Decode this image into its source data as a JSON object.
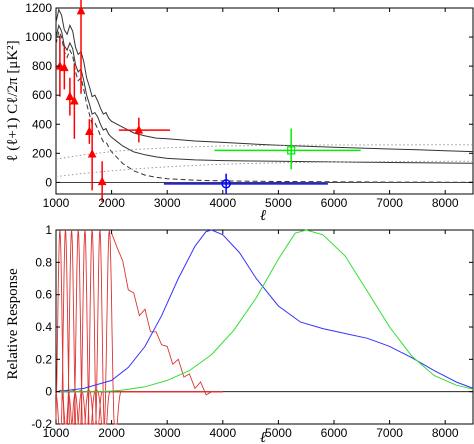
{
  "chart_data": [
    {
      "type": "line",
      "xlabel": "ℓ",
      "ylabel": "ℓ (ℓ+1) Cℓ/2π [μK²]",
      "xlim": [
        1000,
        8500
      ],
      "ylim": [
        -80,
        1200
      ],
      "xticks": [
        "1000",
        "2000",
        "3000",
        "4000",
        "5000",
        "6000",
        "7000",
        "8000"
      ],
      "yticks": [
        "0",
        "200",
        "400",
        "600",
        "800",
        "1000",
        "1200"
      ],
      "series": [
        {
          "style": "solid-black",
          "x": [
            1000,
            1050,
            1100,
            1150,
            1200,
            1250,
            1300,
            1350,
            1400,
            1450,
            1500,
            1550,
            1600,
            1650,
            1700,
            1750,
            1800,
            1850,
            1900,
            1950,
            2000,
            2100,
            2200,
            2400,
            2600,
            2800,
            3000,
            3500,
            4000,
            4500,
            5000,
            5500,
            6000,
            6500,
            7000,
            7500,
            8000,
            8500
          ],
          "y": [
            1100,
            1190,
            1150,
            1050,
            1020,
            1080,
            1040,
            930,
            880,
            900,
            830,
            720,
            660,
            590,
            600,
            560,
            510,
            470,
            480,
            440,
            420,
            400,
            380,
            340,
            320,
            305,
            300,
            285,
            275,
            265,
            255,
            248,
            242,
            236,
            230,
            224,
            218,
            212
          ]
        },
        {
          "style": "solid-black",
          "x": [
            1000,
            1050,
            1100,
            1150,
            1200,
            1250,
            1300,
            1350,
            1400,
            1450,
            1500,
            1550,
            1600,
            1650,
            1700,
            1750,
            1800,
            1850,
            1900,
            1950,
            2000,
            2100,
            2200,
            2400,
            2600,
            2800,
            3000,
            3500,
            4000,
            4500,
            5000,
            5500,
            6000,
            6500,
            7000,
            7500,
            8000,
            8500
          ],
          "y": [
            1000,
            1080,
            1040,
            940,
            910,
            960,
            920,
            810,
            760,
            780,
            700,
            600,
            540,
            470,
            480,
            450,
            400,
            360,
            370,
            330,
            310,
            280,
            250,
            210,
            190,
            175,
            165,
            155,
            150,
            147,
            145,
            143,
            141,
            139,
            137,
            135,
            133,
            131
          ]
        },
        {
          "style": "dashed-black",
          "x": [
            1000,
            1050,
            1100,
            1150,
            1200,
            1250,
            1300,
            1350,
            1400,
            1450,
            1500,
            1550,
            1600,
            1650,
            1700,
            1750,
            1800,
            1850,
            1900,
            1950,
            2000,
            2100,
            2200,
            2400,
            2600,
            2800,
            3000,
            3500,
            4000,
            4500,
            5000,
            5500,
            6000,
            6500,
            7000,
            7500,
            8000,
            8500
          ],
          "y": [
            950,
            1040,
            1000,
            900,
            860,
            910,
            870,
            760,
            700,
            720,
            640,
            540,
            470,
            400,
            410,
            370,
            320,
            280,
            280,
            240,
            210,
            170,
            130,
            80,
            50,
            35,
            25,
            15,
            10,
            8,
            6,
            5,
            4,
            3,
            2,
            2,
            1,
            1
          ]
        },
        {
          "style": "dotted-gray",
          "x": [
            1000,
            1500,
            2000,
            2500,
            3000,
            3500,
            4000,
            5000,
            6000,
            7000,
            8000,
            8500
          ],
          "y": [
            160,
            190,
            212,
            228,
            238,
            245,
            250,
            255,
            257,
            258,
            259,
            259
          ]
        },
        {
          "style": "dotted-gray",
          "x": [
            1000,
            1500,
            2000,
            2500,
            3000,
            3500,
            4000,
            5000,
            6000,
            7000,
            8000,
            8500
          ],
          "y": [
            40,
            62,
            80,
            95,
            107,
            117,
            125,
            135,
            140,
            143,
            145,
            146
          ]
        }
      ],
      "points": [
        {
          "color": "#ff0000",
          "marker": "triangle",
          "x": 1070,
          "y": 800,
          "yerr": [
            210,
            210
          ],
          "xerr": [
            0,
            0
          ]
        },
        {
          "color": "#ff0000",
          "marker": "triangle",
          "x": 1150,
          "y": 790,
          "yerr": [
            150,
            150
          ],
          "xerr": [
            0,
            0
          ]
        },
        {
          "color": "#ff0000",
          "marker": "triangle",
          "x": 1250,
          "y": 590,
          "yerr": [
            130,
            130
          ],
          "xerr": [
            0,
            0
          ]
        },
        {
          "color": "#ff0000",
          "marker": "triangle",
          "x": 1330,
          "y": 560,
          "yerr": [
            260,
            260
          ],
          "xerr": [
            0,
            0
          ]
        },
        {
          "color": "#ff0000",
          "marker": "triangle",
          "x": 1450,
          "y": 1180,
          "yerr": [
            570,
            570
          ],
          "xerr": [
            0,
            0
          ]
        },
        {
          "color": "#ff0000",
          "marker": "triangle",
          "x": 1600,
          "y": 350,
          "yerr": [
            85,
            85
          ],
          "xerr": [
            0,
            0
          ]
        },
        {
          "color": "#ff0000",
          "marker": "triangle",
          "x": 1650,
          "y": 195,
          "yerr": [
            250,
            250
          ],
          "xerr": [
            0,
            0
          ]
        },
        {
          "color": "#ff0000",
          "marker": "triangle",
          "x": 1830,
          "y": 5,
          "yerr": [
            140,
            140
          ],
          "xerr": [
            0,
            0
          ]
        },
        {
          "color": "#ff0000",
          "marker": "triangle",
          "x": 2490,
          "y": 360,
          "yerr": [
            85,
            85
          ],
          "xerr": [
            360,
            560
          ]
        },
        {
          "color": "#00ee00",
          "marker": "square",
          "x": 5230,
          "y": 220,
          "yerr": [
            130,
            150
          ],
          "xerr": [
            1380,
            1250
          ]
        },
        {
          "color": "#0000ff",
          "marker": "circle",
          "x": 4060,
          "y": -10,
          "yerr": [
            70,
            70
          ],
          "xerr": [
            1120,
            1830
          ]
        }
      ]
    },
    {
      "type": "line",
      "xlabel": "ℓ",
      "ylabel": "Relative Response",
      "xlim": [
        1000,
        8500
      ],
      "ylim": [
        -0.2,
        1.0
      ],
      "xticks": [
        "1000",
        "2000",
        "3000",
        "4000",
        "5000",
        "6000",
        "7000",
        "8000"
      ],
      "yticks": [
        "-0.2",
        "0",
        "0.2",
        "0.4",
        "0.6",
        "0.8",
        "1"
      ],
      "series": [
        {
          "name": "blue",
          "color": "#3333ff",
          "x": [
            1000,
            1500,
            2000,
            2300,
            2600,
            2900,
            3200,
            3500,
            3700,
            3800,
            4000,
            4300,
            4600,
            5000,
            5400,
            5800,
            6200,
            6600,
            7000,
            7400,
            7800,
            8200,
            8500
          ],
          "y": [
            0.0,
            0.02,
            0.07,
            0.15,
            0.28,
            0.47,
            0.7,
            0.9,
            0.99,
            1.0,
            0.97,
            0.86,
            0.7,
            0.53,
            0.43,
            0.39,
            0.36,
            0.33,
            0.28,
            0.21,
            0.13,
            0.06,
            0.02
          ]
        },
        {
          "name": "green",
          "color": "#33dd33",
          "x": [
            1000,
            1800,
            2200,
            2600,
            3000,
            3400,
            3800,
            4200,
            4600,
            5000,
            5300,
            5500,
            5800,
            6200,
            6600,
            7000,
            7400,
            7800,
            8200,
            8500
          ],
          "y": [
            0.0,
            0.0,
            0.01,
            0.03,
            0.07,
            0.13,
            0.23,
            0.38,
            0.58,
            0.82,
            0.98,
            1.0,
            0.97,
            0.84,
            0.62,
            0.4,
            0.22,
            0.1,
            0.04,
            0.015
          ]
        }
      ],
      "red_curves": [
        {
          "peak_x": 1070,
          "width": 60
        },
        {
          "peak_x": 1170,
          "width": 60
        },
        {
          "peak_x": 1280,
          "width": 60
        },
        {
          "peak_x": 1400,
          "width": 60
        },
        {
          "peak_x": 1520,
          "width": 60
        },
        {
          "peak_x": 1650,
          "width": 60
        },
        {
          "peak_x": 1790,
          "width": 60
        },
        {
          "peak_x": 1960,
          "width": 70
        }
      ],
      "red_tail": {
        "x": [
          2000,
          2100,
          2200,
          2300,
          2400,
          2500,
          2600,
          2700,
          2800,
          2900,
          3000,
          3100,
          3200,
          3300,
          3400,
          3500,
          3600,
          3700,
          3800
        ],
        "y": [
          0.98,
          0.92,
          0.78,
          0.66,
          0.58,
          0.5,
          0.48,
          0.4,
          0.34,
          0.32,
          0.25,
          0.2,
          0.17,
          0.12,
          0.08,
          0.05,
          0.03,
          0.01,
          0.0
        ]
      }
    }
  ]
}
